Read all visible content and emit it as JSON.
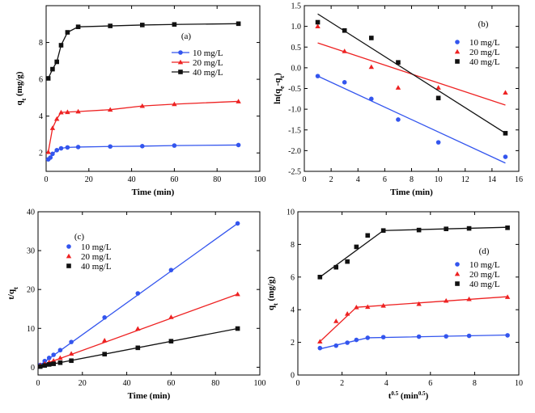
{
  "chart_data": [
    {
      "type": "line",
      "panel": "(a)",
      "xlabel": "Time (min)",
      "ylabel": "q_t (mg/g)",
      "xlim": [
        0,
        100
      ],
      "ylim": [
        1,
        10
      ],
      "xticks": [
        0,
        20,
        40,
        60,
        80,
        100
      ],
      "yticks": [
        2,
        4,
        6,
        8
      ],
      "legend_position": "right",
      "legend_style": "line-marker",
      "series": [
        {
          "name": "10 mg/L",
          "color": "#3355ee",
          "marker": "circle",
          "x": [
            1,
            2,
            3,
            5,
            7,
            10,
            15,
            30,
            45,
            60,
            90
          ],
          "y": [
            1.65,
            1.75,
            1.95,
            2.15,
            2.25,
            2.3,
            2.32,
            2.35,
            2.37,
            2.4,
            2.43
          ]
        },
        {
          "name": "20 mg/L",
          "color": "#ee2222",
          "marker": "triangle",
          "x": [
            1,
            3,
            5,
            7,
            10,
            15,
            30,
            45,
            60,
            90
          ],
          "y": [
            2.05,
            3.35,
            3.85,
            4.2,
            4.22,
            4.25,
            4.35,
            4.55,
            4.65,
            4.8
          ]
        },
        {
          "name": "40 mg/L",
          "color": "#111111",
          "marker": "square",
          "x": [
            1,
            3,
            5,
            7,
            10,
            15,
            30,
            45,
            60,
            90
          ],
          "y": [
            6.05,
            6.55,
            6.95,
            7.85,
            8.55,
            8.85,
            8.9,
            8.95,
            8.98,
            9.02
          ]
        }
      ]
    },
    {
      "type": "scatter",
      "panel": "(b)",
      "xlabel": "Time (min)",
      "ylabel": "ln(q_e-q_t)",
      "xlim": [
        0,
        16
      ],
      "ylim": [
        -2.5,
        1.5
      ],
      "xticks": [
        0,
        2,
        4,
        6,
        8,
        10,
        12,
        14,
        16
      ],
      "yticks": [
        -2.5,
        -2.0,
        -1.5,
        -1.0,
        -0.5,
        0.0,
        0.5,
        1.0,
        1.5
      ],
      "ytick_labels": [
        "-2.5",
        "-2.0",
        "-1.5",
        "-1.0",
        "-0.5",
        "0.0",
        "0.5",
        "1.0",
        "1.5"
      ],
      "legend_position": "right",
      "legend_style": "marker",
      "series": [
        {
          "name": "10 mg/L",
          "color": "#3355ee",
          "marker": "circle",
          "x": [
            1,
            3,
            5,
            7,
            10,
            15
          ],
          "y": [
            -0.2,
            -0.35,
            -0.75,
            -1.25,
            -1.8,
            -2.15
          ],
          "fit": [
            [
              1,
              -0.2
            ],
            [
              15,
              -2.3
            ]
          ]
        },
        {
          "name": "20 mg/L",
          "color": "#ee2222",
          "marker": "triangle",
          "x": [
            1,
            3,
            5,
            7,
            10,
            15
          ],
          "y": [
            1.0,
            0.4,
            0.02,
            -0.48,
            -0.48,
            -0.6
          ],
          "fit": [
            [
              1,
              0.6
            ],
            [
              15,
              -0.9
            ]
          ]
        },
        {
          "name": "40 mg/L",
          "color": "#111111",
          "marker": "square",
          "x": [
            1,
            3,
            5,
            7,
            10,
            15
          ],
          "y": [
            1.1,
            0.9,
            0.72,
            0.13,
            -0.73,
            -1.58
          ],
          "fit": [
            [
              1,
              1.3
            ],
            [
              15,
              -1.58
            ]
          ]
        }
      ]
    },
    {
      "type": "scatter",
      "panel": "(c)",
      "xlabel": "Time (min)",
      "ylabel": "t/q_t",
      "xlim": [
        0,
        100
      ],
      "ylim": [
        -2,
        40
      ],
      "xticks": [
        0,
        20,
        40,
        60,
        80,
        100
      ],
      "yticks": [
        0,
        10,
        20,
        30,
        40
      ],
      "legend_position": "top-left",
      "legend_style": "marker",
      "series": [
        {
          "name": "10 mg/L",
          "color": "#3355ee",
          "marker": "circle",
          "x": [
            1,
            3,
            5,
            7,
            10,
            15,
            30,
            45,
            60,
            90
          ],
          "y": [
            0.6,
            1.6,
            2.4,
            3.2,
            4.4,
            6.5,
            12.8,
            19.0,
            25.0,
            37.0
          ],
          "fit": [
            [
              0,
              0.2
            ],
            [
              90,
              37.0
            ]
          ]
        },
        {
          "name": "20 mg/L",
          "color": "#ee2222",
          "marker": "triangle",
          "x": [
            1,
            3,
            5,
            7,
            10,
            15,
            30,
            45,
            60,
            90
          ],
          "y": [
            0.5,
            0.9,
            1.3,
            1.7,
            2.4,
            3.5,
            6.9,
            9.9,
            12.9,
            18.8
          ],
          "fit": [
            [
              0,
              0.2
            ],
            [
              90,
              18.8
            ]
          ]
        },
        {
          "name": "40 mg/L",
          "color": "#111111",
          "marker": "square",
          "x": [
            1,
            3,
            5,
            7,
            10,
            15,
            30,
            45,
            60,
            90
          ],
          "y": [
            0.17,
            0.46,
            0.72,
            0.89,
            1.17,
            1.69,
            3.37,
            5.0,
            6.7,
            9.95
          ],
          "fit": [
            [
              0,
              0.1
            ],
            [
              90,
              9.95
            ]
          ]
        }
      ]
    },
    {
      "type": "scatter",
      "panel": "(d)",
      "xlabel": "t",
      "xlabel_sup": "0.5",
      "xlabel_suffix": " (min",
      "xlabel_suffix_sup": "0.5",
      "xlabel_end": ")",
      "ylabel": "q_t (mg/g)",
      "xlim": [
        0,
        10
      ],
      "ylim": [
        0,
        10
      ],
      "xticks": [
        0,
        2,
        4,
        6,
        8,
        10
      ],
      "yticks": [
        0,
        2,
        4,
        6,
        8,
        10
      ],
      "legend_position": "right",
      "legend_style": "marker",
      "series": [
        {
          "name": "10 mg/L",
          "color": "#3355ee",
          "marker": "circle",
          "x": [
            1.0,
            1.73,
            2.24,
            2.65,
            3.16,
            3.87,
            5.48,
            6.71,
            7.75,
            9.49
          ],
          "y": [
            1.65,
            1.8,
            1.98,
            2.15,
            2.28,
            2.32,
            2.35,
            2.37,
            2.4,
            2.43
          ],
          "fit": [
            [
              1.0,
              1.6
            ],
            [
              3.16,
              2.28
            ],
            [
              9.49,
              2.45
            ]
          ]
        },
        {
          "name": "20 mg/L",
          "color": "#ee2222",
          "marker": "triangle",
          "x": [
            1.0,
            1.73,
            2.24,
            2.65,
            3.16,
            3.87,
            5.48,
            6.71,
            7.75,
            9.49
          ],
          "y": [
            2.05,
            3.3,
            3.75,
            4.15,
            4.17,
            4.25,
            4.35,
            4.55,
            4.65,
            4.78
          ],
          "fit": [
            [
              1.0,
              2.05
            ],
            [
              2.65,
              4.15
            ],
            [
              9.49,
              4.8
            ]
          ]
        },
        {
          "name": "40 mg/L",
          "color": "#111111",
          "marker": "square",
          "x": [
            1.0,
            1.73,
            2.24,
            2.65,
            3.16,
            3.87,
            5.48,
            6.71,
            7.75,
            9.49
          ],
          "y": [
            6.0,
            6.6,
            6.95,
            7.85,
            8.55,
            8.85,
            8.88,
            8.95,
            8.98,
            9.02
          ],
          "fit": [
            [
              1.0,
              6.0
            ],
            [
              3.87,
              8.85
            ],
            [
              9.49,
              9.05
            ]
          ]
        }
      ]
    }
  ]
}
